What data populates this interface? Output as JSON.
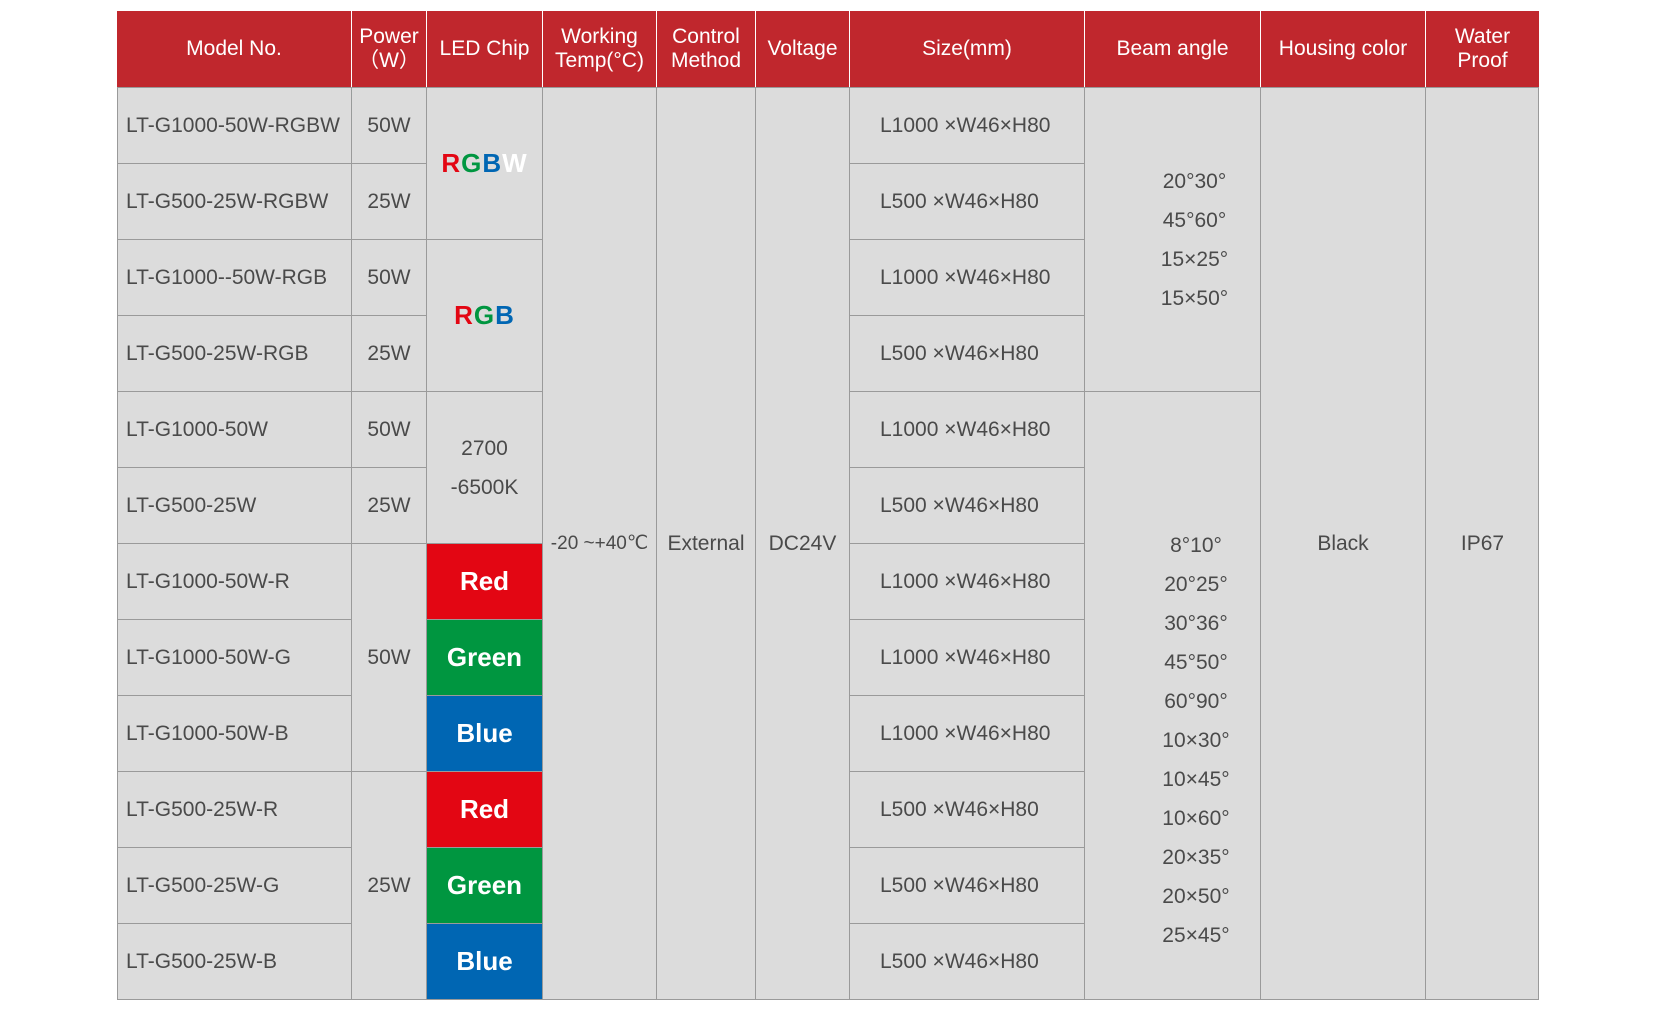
{
  "headers": {
    "model": "Model No.",
    "power_line1": "Power",
    "power_line2": "（W）",
    "chip": "LED Chip",
    "temp_line1": "Working",
    "temp_line2": "Temp(°C)",
    "control_line1": "Control",
    "control_line2": "Method",
    "voltage": "Voltage",
    "size": "Size(mm)",
    "beam": "Beam angle",
    "housing": "Housing color",
    "water_line1": "Water",
    "water_line2": "Proof"
  },
  "models": [
    "LT-G1000-50W-RGBW",
    "LT-G500-25W-RGBW",
    "LT-G1000--50W-RGB",
    "LT-G500-25W-RGB",
    "LT-G1000-50W",
    "LT-G500-25W",
    "LT-G1000-50W-R",
    "LT-G1000-50W-G",
    "LT-G1000-50W-B",
    "LT-G500-25W-R",
    "LT-G500-25W-G",
    "LT-G500-25W-B"
  ],
  "power": {
    "r1": "50W",
    "r2": "25W",
    "r3": "50W",
    "r4": "25W",
    "r5": "50W",
    "r6": "25W",
    "group_50": "50W",
    "group_25": "25W"
  },
  "chips": {
    "rgbw": [
      "R",
      "G",
      "B",
      "W"
    ],
    "rgb": [
      "R",
      "G",
      "B"
    ],
    "cct_line1": "2700",
    "cct_line2": "-6500K",
    "red": "Red",
    "green": "Green",
    "blue": "Blue",
    "colors": {
      "red": "#e30613",
      "green": "#009640",
      "blue": "#0066b3"
    }
  },
  "temp": "-20 ~+40℃",
  "control": "External",
  "voltage": "DC24V",
  "sizes": [
    "L1000 ×W46×H80",
    "L500 ×W46×H80",
    "L1000 ×W46×H80",
    "L500 ×W46×H80",
    "L1000 ×W46×H80",
    "L500 ×W46×H80",
    "L1000 ×W46×H80",
    "L1000 ×W46×H80",
    "L1000 ×W46×H80",
    "L500 ×W46×H80",
    "L500 ×W46×H80",
    "L500 ×W46×H80"
  ],
  "beam_group1": [
    "20°30°",
    "45°60°",
    "15×25°",
    "15×50°"
  ],
  "beam_group2": [
    "8°10°",
    "20°25°",
    "30°36°",
    "45°50°",
    "60°90°",
    "10×30°",
    "10×45°",
    "10×60°",
    "20×35°",
    "20×50°",
    "25×45°"
  ],
  "housing": "Black",
  "waterproof": "IP67",
  "header_color": "#c0272d"
}
